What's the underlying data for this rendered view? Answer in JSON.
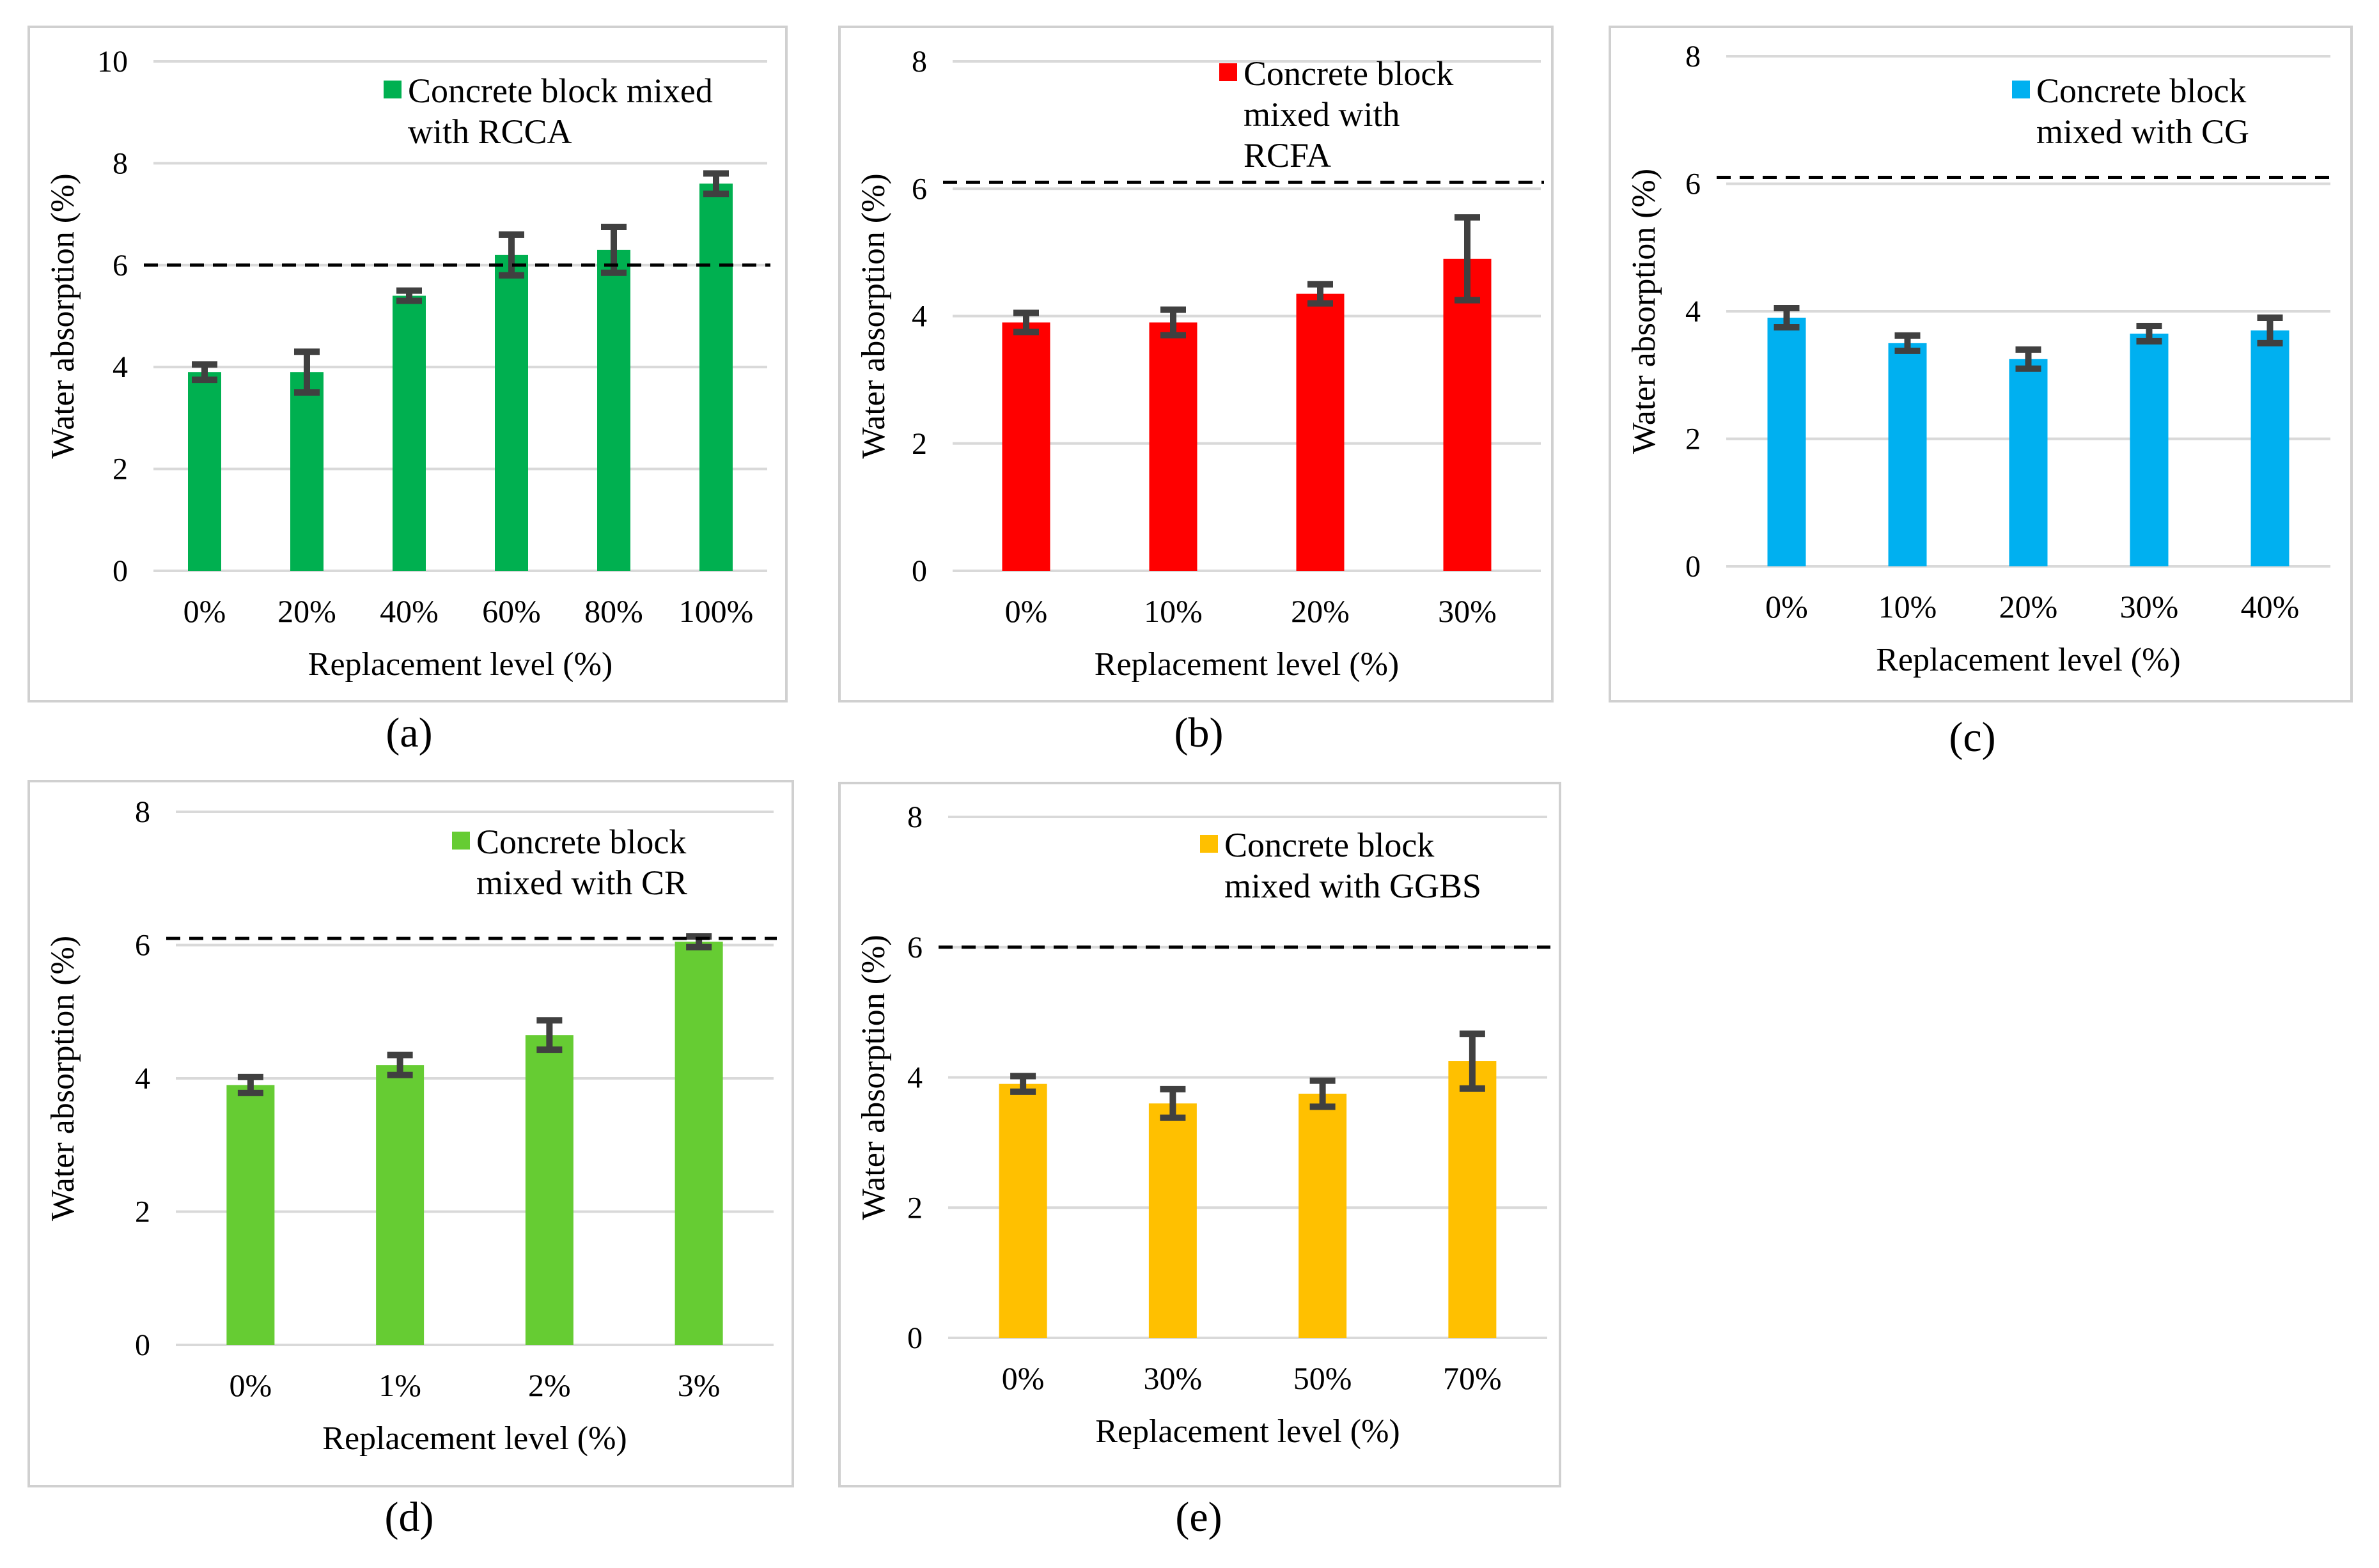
{
  "figure": {
    "panels": [
      "(a)",
      "(b)",
      "(c)",
      "(d)",
      "(e)"
    ]
  },
  "colors": {
    "a": "#00B050",
    "b": "#FF0000",
    "c": "#00B0F0",
    "d": "#66CC33",
    "e": "#FFC000",
    "errorbar": "#404040",
    "grid": "#D9D9D9",
    "threshold": "#000000"
  },
  "chart_data": [
    {
      "id": "a",
      "type": "bar",
      "panel_label": "(a)",
      "legend": "Concrete block mixed with RCCA",
      "legend_lines": [
        "Concrete block mixed",
        "with RCCA"
      ],
      "xlabel": "Replacement level (%)",
      "ylabel": "Water absorption (%)",
      "categories": [
        "0%",
        "20%",
        "40%",
        "60%",
        "80%",
        "100%"
      ],
      "values": [
        3.9,
        3.9,
        5.4,
        6.2,
        6.3,
        7.6
      ],
      "errors": [
        0.15,
        0.4,
        0.1,
        0.4,
        0.45,
        0.2
      ],
      "ylim": [
        0,
        10
      ],
      "yticks": [
        "0",
        "2",
        "4",
        "6",
        "8",
        "10"
      ],
      "threshold": 6,
      "grid": true
    },
    {
      "id": "b",
      "type": "bar",
      "panel_label": "(b)",
      "legend": "Concrete block mixed with RCFA",
      "legend_lines": [
        "Concrete block",
        "mixed with",
        "RCFA"
      ],
      "xlabel": "Replacement level (%)",
      "ylabel": "Water absorption (%)",
      "categories": [
        "0%",
        "10%",
        "20%",
        "30%"
      ],
      "values": [
        3.9,
        3.9,
        4.35,
        4.9
      ],
      "errors": [
        0.15,
        0.2,
        0.15,
        0.65
      ],
      "ylim": [
        0,
        8
      ],
      "yticks": [
        "0",
        "2",
        "4",
        "6",
        "8"
      ],
      "threshold": 6.1,
      "grid": true
    },
    {
      "id": "c",
      "type": "bar",
      "panel_label": "(c)",
      "legend": "Concrete block mixed with CG",
      "legend_lines": [
        "Concrete block",
        "mixed with CG"
      ],
      "xlabel": "Replacement level (%)",
      "ylabel": "Water absorption (%)",
      "categories": [
        "0%",
        "10%",
        "20%",
        "30%",
        "40%"
      ],
      "values": [
        3.9,
        3.5,
        3.25,
        3.65,
        3.7
      ],
      "errors": [
        0.15,
        0.12,
        0.15,
        0.12,
        0.2
      ],
      "ylim": [
        0,
        8
      ],
      "yticks": [
        "0",
        "2",
        "4",
        "6",
        "8"
      ],
      "threshold": 6.1,
      "grid": true
    },
    {
      "id": "d",
      "type": "bar",
      "panel_label": "(d)",
      "legend": "Concrete block mixed with CR",
      "legend_lines": [
        "Concrete block",
        "mixed with CR"
      ],
      "xlabel": "Replacement level (%)",
      "ylabel": "Water absorption (%)",
      "categories": [
        "0%",
        "1%",
        "2%",
        "3%"
      ],
      "values": [
        3.9,
        4.2,
        4.65,
        6.05
      ],
      "errors": [
        0.12,
        0.15,
        0.22,
        0.08
      ],
      "ylim": [
        0,
        8
      ],
      "yticks": [
        "0",
        "2",
        "4",
        "6",
        "8"
      ],
      "threshold": 6.1,
      "grid": true
    },
    {
      "id": "e",
      "type": "bar",
      "panel_label": "(e)",
      "legend": "Concrete block mixed with GGBS",
      "legend_lines": [
        "Concrete block",
        "mixed with GGBS"
      ],
      "xlabel": "Replacement level (%)",
      "ylabel": "Water absorption (%)",
      "categories": [
        "0%",
        "30%",
        "50%",
        "70%"
      ],
      "values": [
        3.9,
        3.6,
        3.75,
        4.25
      ],
      "errors": [
        0.12,
        0.22,
        0.2,
        0.42
      ],
      "ylim": [
        0,
        8
      ],
      "yticks": [
        "0",
        "2",
        "4",
        "6",
        "8"
      ],
      "threshold": 6,
      "grid": true
    }
  ]
}
